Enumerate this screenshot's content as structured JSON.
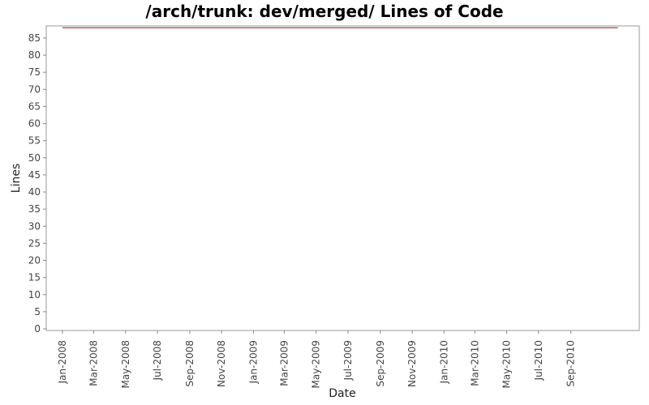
{
  "chart_data": {
    "type": "line",
    "title": "/arch/trunk: dev/merged/ Lines of Code",
    "xlabel": "Date",
    "ylabel": "Lines",
    "x_ticks": [
      "Jan-2008",
      "Mar-2008",
      "May-2008",
      "Jul-2008",
      "Sep-2008",
      "Nov-2008",
      "Jan-2009",
      "Mar-2009",
      "May-2009",
      "Jul-2009",
      "Sep-2009",
      "Nov-2009",
      "Jan-2010",
      "Mar-2010",
      "May-2010",
      "Jul-2010",
      "Sep-2010"
    ],
    "y_ticks": [
      0,
      5,
      10,
      15,
      20,
      25,
      30,
      35,
      40,
      45,
      50,
      55,
      60,
      65,
      70,
      75,
      80,
      85
    ],
    "ylim": [
      0,
      88.3
    ],
    "xlim": [
      "2007-12-01",
      "2011-01-10"
    ],
    "grid": false,
    "series": [
      {
        "color": "#8b1a1a",
        "x": [
          "2008-01-01",
          "2010-11-30"
        ],
        "values": [
          88,
          88
        ]
      }
    ]
  }
}
